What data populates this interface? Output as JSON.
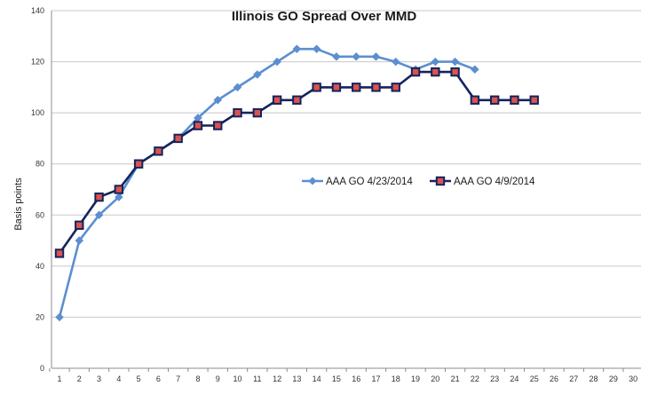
{
  "chart_data": {
    "type": "line",
    "title": "Illinois GO Spread Over MMD",
    "xlabel": "",
    "ylabel": "Basis points",
    "x": [
      1,
      2,
      3,
      4,
      5,
      6,
      7,
      8,
      9,
      10,
      11,
      12,
      13,
      14,
      15,
      16,
      17,
      18,
      19,
      20,
      21,
      22,
      23,
      24,
      25,
      26,
      27,
      28,
      29,
      30
    ],
    "xlim": [
      1,
      30
    ],
    "ylim": [
      0,
      140
    ],
    "yticks": [
      0,
      20,
      40,
      60,
      80,
      100,
      120,
      140
    ],
    "grid": true,
    "legend_position": "center-right",
    "series": [
      {
        "name": "AAA GO 4/23/2014",
        "color": "#5b8fd0",
        "marker": "diamond",
        "x": [
          1,
          2,
          3,
          4,
          5,
          6,
          7,
          8,
          9,
          10,
          11,
          12,
          13,
          14,
          15,
          16,
          17,
          18,
          19,
          20,
          21,
          22
        ],
        "values": [
          20,
          50,
          60,
          67,
          80,
          85,
          90,
          98,
          105,
          110,
          115,
          120,
          125,
          125,
          122,
          122,
          122,
          120,
          117,
          120,
          120,
          117
        ]
      },
      {
        "name": "AAA GO 4/9/2014",
        "color": "#14235c",
        "marker_fill": "#d9534f",
        "marker": "square",
        "x": [
          1,
          2,
          3,
          4,
          5,
          6,
          7,
          8,
          9,
          10,
          11,
          12,
          13,
          14,
          15,
          16,
          17,
          18,
          19,
          20,
          21,
          22,
          23,
          24,
          25
        ],
        "values": [
          45,
          56,
          67,
          70,
          80,
          85,
          90,
          95,
          95,
          100,
          100,
          105,
          105,
          110,
          110,
          110,
          110,
          110,
          116,
          116,
          116,
          105,
          105,
          105,
          105
        ]
      }
    ]
  }
}
